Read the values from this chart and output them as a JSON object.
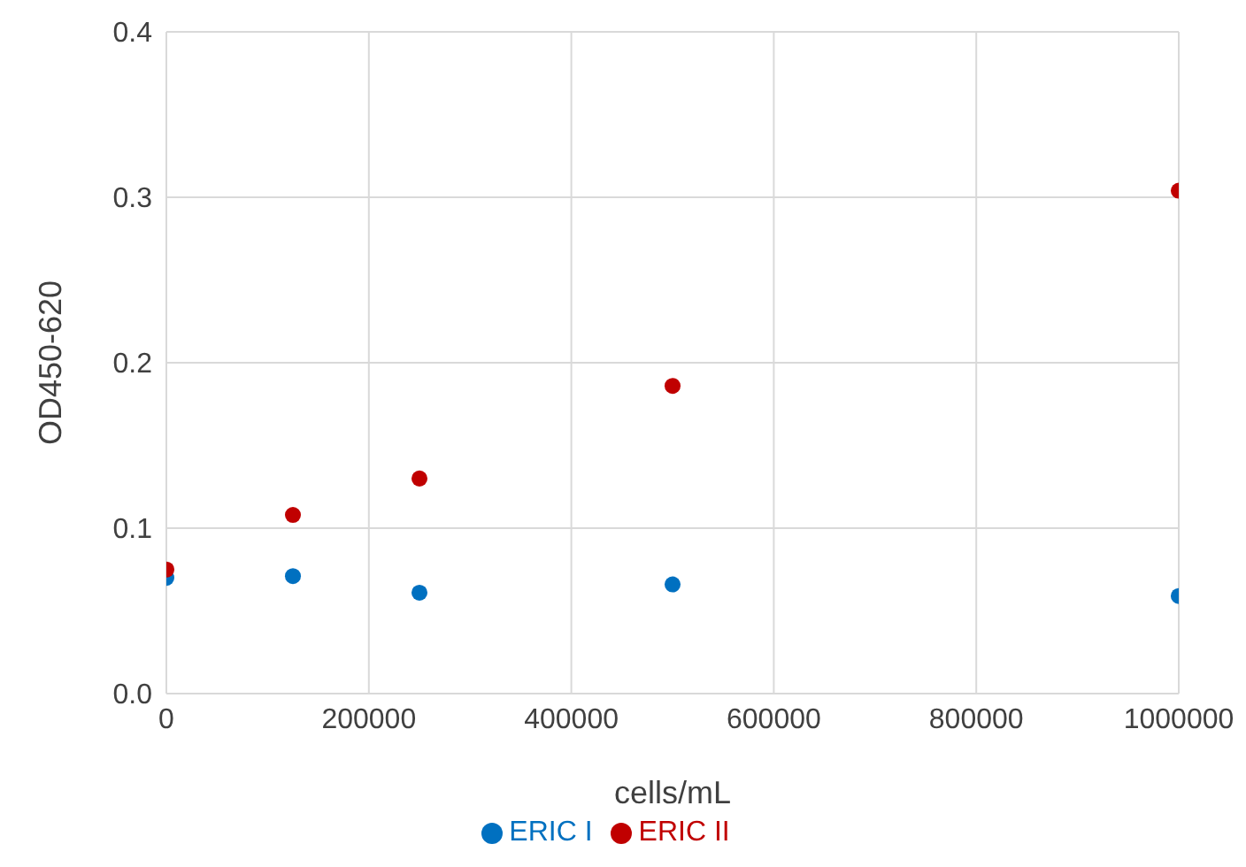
{
  "chart_data": {
    "type": "scatter",
    "xlabel": "cells/mL",
    "ylabel": "OD450-620",
    "xlim": [
      0,
      1000000
    ],
    "xticks": [
      0,
      200000,
      400000,
      600000,
      800000,
      1000000
    ],
    "ylim": [
      0,
      0.4
    ],
    "yticks": [
      {
        "value": 0,
        "label": "0.0"
      },
      0.1,
      0.2,
      0.3,
      0.4
    ],
    "grid": true,
    "legend": "bottom",
    "marker": "circle",
    "x": [
      0,
      125000,
      250000,
      500000,
      1000000
    ],
    "series": [
      {
        "name": "ERIC I",
        "color": "#0070c0",
        "values": [
          0.07,
          0.071,
          0.061,
          0.066,
          0.059
        ]
      },
      {
        "name": "ERIC II",
        "color": "#c00000",
        "values": [
          0.075,
          0.108,
          0.13,
          0.186,
          0.304
        ]
      }
    ]
  }
}
